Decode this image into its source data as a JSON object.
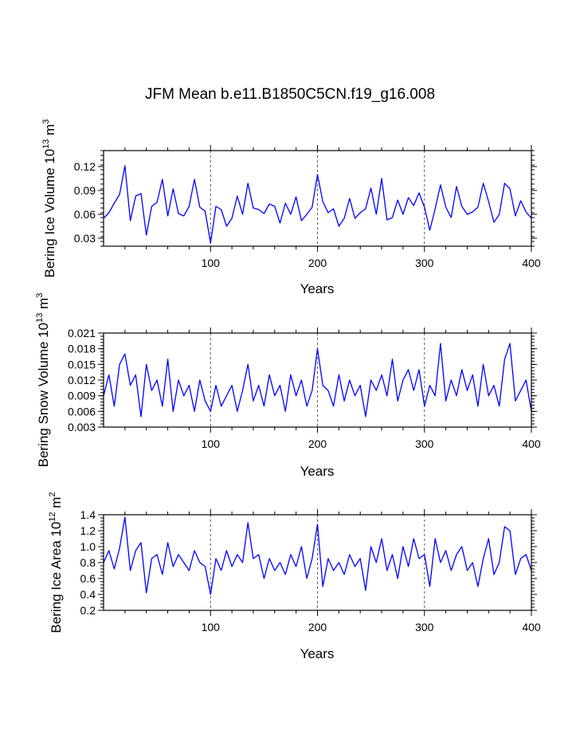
{
  "figure_title": "JFM Mean b.e11.B1850C5CN.f19_g16.008",
  "chart_data": [
    {
      "type": "line",
      "ylabel": "Bering Ice Volume 10",
      "ylabel_exp": "13",
      "ylabel_unit": " m",
      "ylabel_unit_exp": "3",
      "xlabel": "Years",
      "xlim": [
        0,
        400
      ],
      "ylim": [
        0.02,
        0.14
      ],
      "xticks": [
        100,
        200,
        300,
        400
      ],
      "yticks": [
        0.03,
        0.06,
        0.09,
        0.12
      ],
      "ytick_labels": [
        "0.03",
        "0.06",
        "0.09",
        "0.12"
      ],
      "reference_lines_x": [
        100,
        200,
        300
      ],
      "color": "#0000ff",
      "x": [
        0,
        5,
        10,
        15,
        20,
        25,
        30,
        35,
        40,
        45,
        50,
        55,
        60,
        65,
        70,
        75,
        80,
        85,
        90,
        95,
        100,
        105,
        110,
        115,
        120,
        125,
        130,
        135,
        140,
        145,
        150,
        155,
        160,
        165,
        170,
        175,
        180,
        185,
        190,
        195,
        200,
        205,
        210,
        215,
        220,
        225,
        230,
        235,
        240,
        245,
        250,
        255,
        260,
        265,
        270,
        275,
        280,
        285,
        290,
        295,
        300,
        305,
        310,
        315,
        320,
        325,
        330,
        335,
        340,
        345,
        350,
        355,
        360,
        365,
        370,
        375,
        380,
        385,
        390,
        395,
        400
      ],
      "values": [
        0.055,
        0.062,
        0.074,
        0.085,
        0.121,
        0.052,
        0.083,
        0.086,
        0.034,
        0.07,
        0.075,
        0.104,
        0.058,
        0.092,
        0.061,
        0.058,
        0.07,
        0.104,
        0.069,
        0.064,
        0.024,
        0.07,
        0.066,
        0.045,
        0.055,
        0.083,
        0.06,
        0.099,
        0.068,
        0.066,
        0.061,
        0.073,
        0.07,
        0.049,
        0.074,
        0.06,
        0.082,
        0.052,
        0.06,
        0.069,
        0.11,
        0.076,
        0.062,
        0.067,
        0.045,
        0.055,
        0.08,
        0.055,
        0.062,
        0.067,
        0.093,
        0.06,
        0.105,
        0.053,
        0.056,
        0.078,
        0.06,
        0.081,
        0.071,
        0.087,
        0.069,
        0.04,
        0.067,
        0.097,
        0.069,
        0.056,
        0.095,
        0.07,
        0.06,
        0.063,
        0.069,
        0.099,
        0.076,
        0.05,
        0.06,
        0.099,
        0.092,
        0.058,
        0.077,
        0.063,
        0.055
      ]
    },
    {
      "type": "line",
      "ylabel": "Bering Snow Volume 10",
      "ylabel_exp": "13",
      "ylabel_unit": " m",
      "ylabel_unit_exp": "3",
      "xlabel": "Years",
      "xlim": [
        0,
        400
      ],
      "ylim": [
        0.003,
        0.021
      ],
      "xticks": [
        100,
        200,
        300,
        400
      ],
      "yticks": [
        0.003,
        0.006,
        0.009,
        0.012,
        0.015,
        0.018,
        0.021
      ],
      "ytick_labels": [
        "0.003",
        "0.006",
        "0.009",
        "0.012",
        "0.015",
        "0.018",
        "0.021"
      ],
      "reference_lines_x": [
        100,
        200,
        300
      ],
      "color": "#0000ff",
      "x": [
        0,
        5,
        10,
        15,
        20,
        25,
        30,
        35,
        40,
        45,
        50,
        55,
        60,
        65,
        70,
        75,
        80,
        85,
        90,
        95,
        100,
        105,
        110,
        115,
        120,
        125,
        130,
        135,
        140,
        145,
        150,
        155,
        160,
        165,
        170,
        175,
        180,
        185,
        190,
        195,
        200,
        205,
        210,
        215,
        220,
        225,
        230,
        235,
        240,
        245,
        250,
        255,
        260,
        265,
        270,
        275,
        280,
        285,
        290,
        295,
        300,
        305,
        310,
        315,
        320,
        325,
        330,
        335,
        340,
        345,
        350,
        355,
        360,
        365,
        370,
        375,
        380,
        385,
        390,
        395,
        400
      ],
      "values": [
        0.009,
        0.013,
        0.007,
        0.015,
        0.017,
        0.011,
        0.013,
        0.005,
        0.015,
        0.01,
        0.012,
        0.007,
        0.016,
        0.006,
        0.012,
        0.009,
        0.011,
        0.006,
        0.012,
        0.008,
        0.006,
        0.011,
        0.007,
        0.009,
        0.011,
        0.006,
        0.01,
        0.015,
        0.008,
        0.011,
        0.007,
        0.013,
        0.009,
        0.011,
        0.006,
        0.013,
        0.009,
        0.012,
        0.007,
        0.01,
        0.018,
        0.011,
        0.01,
        0.007,
        0.013,
        0.008,
        0.012,
        0.009,
        0.011,
        0.005,
        0.012,
        0.01,
        0.013,
        0.009,
        0.016,
        0.008,
        0.012,
        0.014,
        0.01,
        0.014,
        0.007,
        0.011,
        0.009,
        0.019,
        0.008,
        0.012,
        0.009,
        0.014,
        0.01,
        0.013,
        0.007,
        0.015,
        0.009,
        0.011,
        0.007,
        0.016,
        0.019,
        0.008,
        0.01,
        0.012,
        0.006
      ]
    },
    {
      "type": "line",
      "ylabel": "Bering Ice Area 10",
      "ylabel_exp": "12",
      "ylabel_unit": " m",
      "ylabel_unit_exp": "2",
      "xlabel": "Years",
      "xlim": [
        0,
        400
      ],
      "ylim": [
        0.2,
        1.4
      ],
      "xticks": [
        100,
        200,
        300,
        400
      ],
      "yticks": [
        0.2,
        0.4,
        0.6,
        0.8,
        1.0,
        1.2,
        1.4
      ],
      "ytick_labels": [
        "0.2",
        "0.4",
        "0.6",
        "0.8",
        "1.0",
        "1.2",
        "1.4"
      ],
      "reference_lines_x": [
        100,
        200,
        300
      ],
      "color": "#0000ff",
      "x": [
        0,
        5,
        10,
        15,
        20,
        25,
        30,
        35,
        40,
        45,
        50,
        55,
        60,
        65,
        70,
        75,
        80,
        85,
        90,
        95,
        100,
        105,
        110,
        115,
        120,
        125,
        130,
        135,
        140,
        145,
        150,
        155,
        160,
        165,
        170,
        175,
        180,
        185,
        190,
        195,
        200,
        205,
        210,
        215,
        220,
        225,
        230,
        235,
        240,
        245,
        250,
        255,
        260,
        265,
        270,
        275,
        280,
        285,
        290,
        295,
        300,
        305,
        310,
        315,
        320,
        325,
        330,
        335,
        340,
        345,
        350,
        355,
        360,
        365,
        370,
        375,
        380,
        385,
        390,
        395,
        400
      ],
      "values": [
        0.8,
        0.95,
        0.72,
        0.98,
        1.37,
        0.7,
        0.95,
        1.05,
        0.42,
        0.85,
        0.9,
        0.65,
        1.05,
        0.75,
        0.9,
        0.8,
        0.7,
        0.95,
        0.8,
        0.75,
        0.4,
        0.85,
        0.7,
        0.95,
        0.75,
        0.9,
        0.8,
        1.3,
        0.85,
        0.9,
        0.6,
        0.85,
        0.7,
        0.8,
        0.65,
        0.9,
        0.75,
        1.0,
        0.6,
        0.85,
        1.28,
        0.5,
        0.85,
        0.7,
        0.8,
        0.65,
        0.9,
        0.75,
        0.85,
        0.45,
        1.0,
        0.8,
        1.1,
        0.7,
        0.9,
        0.6,
        1.0,
        0.75,
        1.1,
        0.85,
        0.9,
        0.5,
        1.1,
        0.8,
        0.95,
        0.7,
        0.9,
        1.0,
        0.7,
        0.8,
        0.5,
        0.85,
        1.1,
        0.65,
        0.8,
        1.25,
        1.2,
        0.65,
        0.85,
        0.9,
        0.7
      ]
    }
  ]
}
